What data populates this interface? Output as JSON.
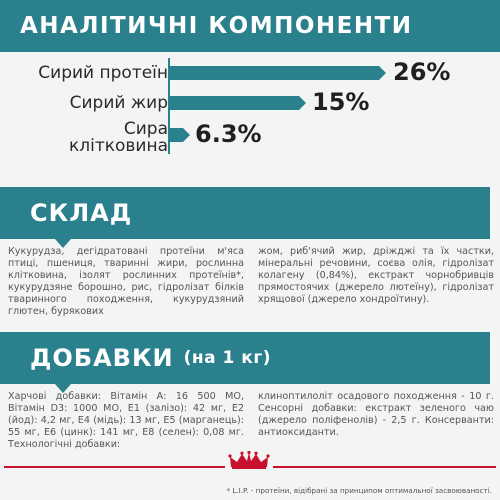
{
  "analytics": {
    "title": "АНАЛІТИЧНІ КОМПОНЕНТИ",
    "items": [
      {
        "label": "Сирий протеїн",
        "value": "26%"
      },
      {
        "label": "Сирий жир",
        "value": "15%"
      },
      {
        "label_line1": "Сира",
        "label_line2": "клітковина",
        "value": "6.3%"
      }
    ]
  },
  "composition": {
    "title": "СКЛАД",
    "col1": "Кукурудза, дегідратовані протеїни м'яса птиці, пшениця, тваринні жири, рослинна клітковина, ізолят рослинних протеїнів*, кукурудзяне борошно, рис, гідролізат білків тваринного походження, кукурудзяний глютен, бурякових",
    "col2": "жом, риб'ячий жир, дріжджі та їх частки, мінеральні речовини, соєва олія, гідролізат колагену (0,84%), екстракт чорнобривців прямостоячих (джерело лютеїну), гідролізат хрящової (джерело хондроїтину)."
  },
  "additives": {
    "title": "ДОБАВКИ",
    "title_small": "(на 1 кг)",
    "col1": "Харчові добавки: Вітамін А: 16 500 МО, Вітамін D3: 1000 МО, Е1 (залізо): 42 мг, Е2 (йод): 4,2 мг, Е4 (мідь): 13 мг, Е5 (марганець): 55 мг, Е6 (цинк): 141 мг, Е8 (селен): 0,08 мг. Технологічні добавки:",
    "col2": "клиноптилоліт осадового походження - 10 г. Сенсорні добавки: екстракт зеленого чаю (джерело поліфенолів) - 2,5 г. Консерванти: антиоксиданти."
  },
  "footer": {
    "note": "* L.I.P. - протеїни, відібрані за принципом оптимальної засвоюваності."
  },
  "colors": {
    "accent": "#2b808e",
    "brand_red": "#c8102e"
  },
  "icons": [
    "royal-canin-crown-logo"
  ]
}
